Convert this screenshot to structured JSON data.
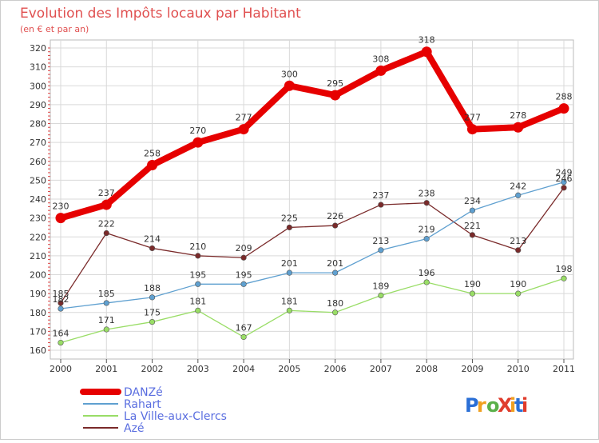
{
  "chart_data": {
    "type": "line",
    "title": "Evolution des Impôts locaux par Habitant",
    "subtitle": "(en € et par an)",
    "x": [
      "2000",
      "2001",
      "2002",
      "2003",
      "2004",
      "2005",
      "2006",
      "2007",
      "2008",
      "2009",
      "2010",
      "2011"
    ],
    "ylim": [
      160,
      320
    ],
    "yticks": [
      160,
      170,
      180,
      190,
      200,
      210,
      220,
      230,
      240,
      250,
      260,
      270,
      280,
      290,
      300,
      310,
      320
    ],
    "grid": true,
    "legend_position": "bottom-left",
    "series": [
      {
        "name": "DANZé",
        "color": "#e60000",
        "values": [
          230,
          237,
          258,
          270,
          277,
          300,
          295,
          308,
          318,
          277,
          278,
          288
        ]
      },
      {
        "name": "Rahart",
        "color": "#5fa0d0",
        "values": [
          182,
          185,
          188,
          195,
          195,
          201,
          201,
          213,
          219,
          234,
          242,
          249
        ]
      },
      {
        "name": "La Ville-aux-Clercs",
        "color": "#99dd66",
        "values": [
          164,
          171,
          175,
          181,
          167,
          181,
          180,
          189,
          196,
          190,
          190,
          198
        ]
      },
      {
        "name": "Azé",
        "color": "#7a2a2a",
        "values": [
          185,
          222,
          214,
          210,
          209,
          225,
          226,
          237,
          238,
          221,
          213,
          246
        ]
      }
    ]
  },
  "brand": {
    "logo_text": "ProXiti"
  }
}
